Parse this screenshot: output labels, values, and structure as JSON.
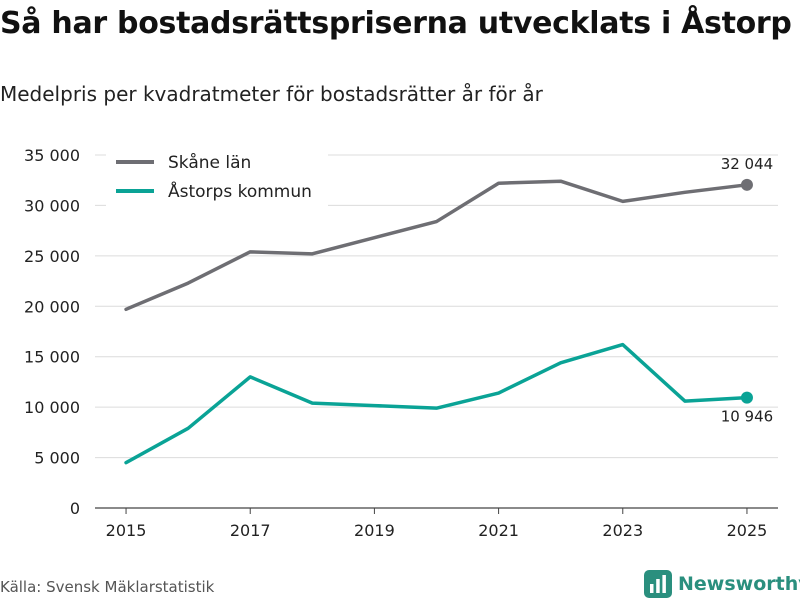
{
  "title": "Så har bostadsrättspriserna utvecklats i Åstorp",
  "subtitle": "Medelpris per kvadratmeter för bostadsrätter år för år",
  "source": "Källa: Svensk Mäklarstatistik",
  "brand": {
    "name": "Newsworthy",
    "icon": "bar-chart-logo-icon",
    "color": "#2a8f7e"
  },
  "chart_data": {
    "type": "line",
    "title": "Så har bostadsrättspriserna utvecklats i Åstorp",
    "xlabel": "",
    "ylabel": "",
    "x": [
      2015,
      2016,
      2017,
      2018,
      2019,
      2020,
      2021,
      2022,
      2023,
      2024,
      2025
    ],
    "xlim": [
      2014.5,
      2025.5
    ],
    "ylim": [
      0,
      35000
    ],
    "xticks": [
      "2015",
      "2017",
      "2019",
      "2021",
      "2023",
      "2025"
    ],
    "xtick_values": [
      2015,
      2017,
      2019,
      2021,
      2023,
      2025
    ],
    "yticks": [
      "0",
      "5 000",
      "10 000",
      "15 000",
      "20 000",
      "25 000",
      "30 000",
      "35 000"
    ],
    "ytick_values": [
      0,
      5000,
      10000,
      15000,
      20000,
      25000,
      30000,
      35000
    ],
    "grid": true,
    "legend_position": "top-left",
    "series": [
      {
        "name": "Skåne län",
        "color": "#6e6e73",
        "values": [
          19700,
          22300,
          25400,
          25200,
          26800,
          28400,
          32200,
          32400,
          30400,
          31300,
          32044
        ],
        "end_label": "32 044"
      },
      {
        "name": "Åstorps kommun",
        "color": "#0aa396",
        "values": [
          4500,
          7900,
          13000,
          10400,
          10150,
          9900,
          11400,
          14400,
          16200,
          10600,
          10946
        ],
        "end_label": "10 946"
      }
    ]
  }
}
